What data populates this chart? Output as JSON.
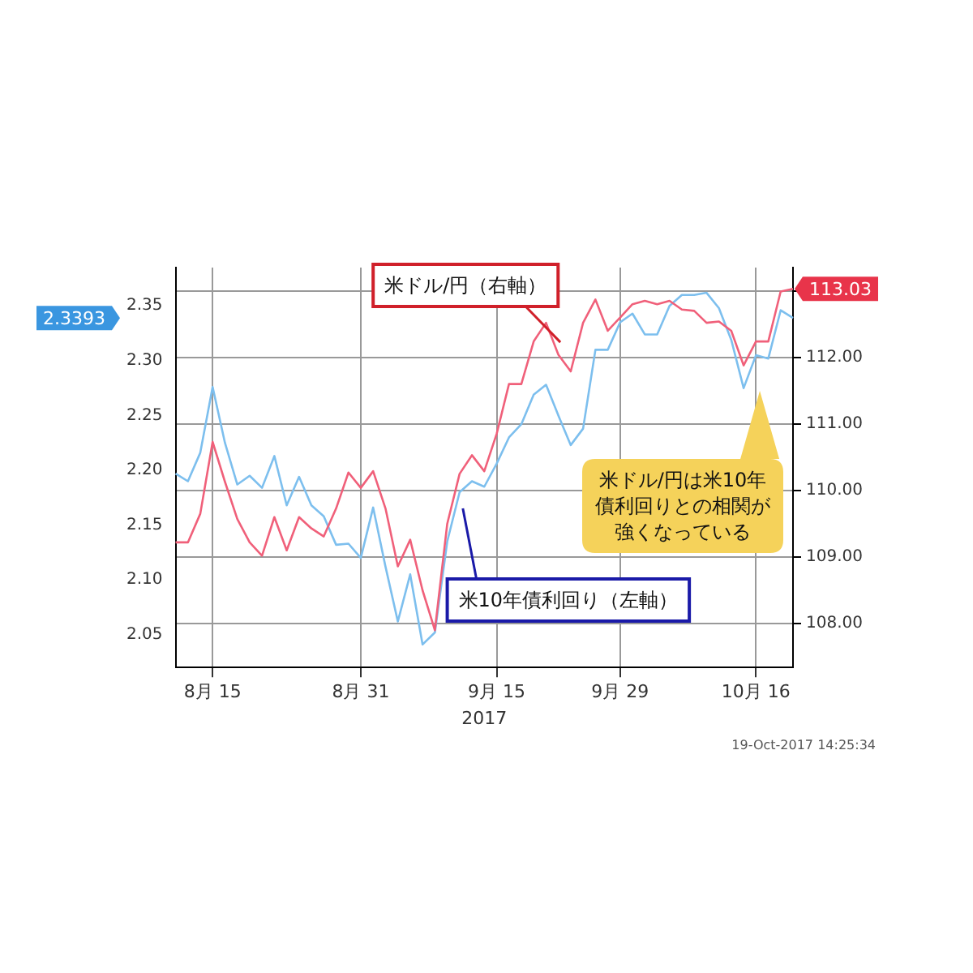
{
  "chart_data": {
    "type": "line",
    "categories": [
      null,
      null,
      null,
      "8月 15",
      null,
      null,
      null,
      null,
      null,
      null,
      null,
      null,
      null,
      null,
      null,
      "8月 31",
      null,
      null,
      null,
      null,
      null,
      null,
      null,
      null,
      null,
      null,
      "9月 15",
      null,
      null,
      null,
      null,
      null,
      null,
      null,
      null,
      null,
      "9月 29",
      null,
      null,
      null,
      null,
      null,
      null,
      null,
      null,
      null,
      null,
      "10月 16",
      null,
      null,
      null
    ],
    "xlabel": "2017",
    "series": [
      {
        "name": "米ドル/円（右軸）",
        "color": "#f0607a",
        "axis": "y2",
        "values": [
          109.22,
          109.22,
          109.65,
          110.73,
          110.13,
          109.57,
          109.22,
          109.02,
          109.6,
          109.1,
          109.6,
          109.43,
          109.31,
          109.73,
          110.27,
          110.04,
          110.29,
          109.73,
          108.86,
          109.26,
          108.5,
          107.9,
          109.5,
          110.25,
          110.53,
          110.29,
          110.85,
          111.6,
          111.6,
          112.24,
          112.52,
          112.04,
          111.79,
          112.52,
          112.87,
          112.4,
          112.6,
          112.8,
          112.85,
          112.8,
          112.85,
          112.72,
          112.7,
          112.52,
          112.54,
          112.4,
          111.88,
          112.24,
          112.24,
          112.99,
          113.03
        ],
        "value_labels": [
          null,
          null,
          null,
          null,
          null,
          null,
          null,
          null,
          null,
          null,
          null,
          null,
          null,
          null,
          null,
          null,
          null,
          null,
          null,
          null,
          null,
          null,
          null,
          null,
          null,
          null,
          null,
          null,
          null,
          null,
          null,
          null,
          null,
          null,
          null,
          null,
          null,
          null,
          null,
          null,
          null,
          null,
          null,
          null,
          null,
          null,
          null,
          null,
          null,
          null,
          "113.03"
        ]
      },
      {
        "name": "米10年債利回り（左軸）",
        "color": "#7dbfee",
        "axis": "y",
        "values": [
          2.197,
          2.19,
          2.216,
          2.276,
          2.225,
          2.187,
          2.195,
          2.184,
          2.213,
          2.168,
          2.194,
          2.168,
          2.158,
          2.132,
          2.133,
          2.12,
          2.166,
          2.112,
          2.062,
          2.105,
          2.041,
          2.052,
          2.135,
          2.18,
          2.19,
          2.185,
          2.206,
          2.23,
          2.242,
          2.269,
          2.278,
          2.25,
          2.223,
          2.238,
          2.31,
          2.31,
          2.335,
          2.343,
          2.324,
          2.324,
          2.35,
          2.36,
          2.36,
          2.362,
          2.348,
          2.319,
          2.275,
          2.305,
          2.302,
          2.346,
          2.339
        ]
      }
    ],
    "ylim": [
      2.02,
      2.385
    ],
    "yticks": [
      {
        "value": 2.05,
        "label": "2.05"
      },
      {
        "value": 2.1,
        "label": "2.10"
      },
      {
        "value": 2.15,
        "label": "2.15"
      },
      {
        "value": 2.2,
        "label": "2.20"
      },
      {
        "value": 2.25,
        "label": "2.25"
      },
      {
        "value": 2.3,
        "label": "2.30"
      },
      {
        "value": 2.35,
        "label": "2.35"
      }
    ],
    "y2lim": [
      107.34,
      113.35
    ],
    "y2ticks": [
      {
        "value": 108,
        "label": "108.00"
      },
      {
        "value": 109,
        "label": "109.00"
      },
      {
        "value": 110,
        "label": "110.00"
      },
      {
        "value": 111,
        "label": "111.00"
      },
      {
        "value": 112,
        "label": "112.00"
      },
      {
        "value": 113,
        "label": null
      }
    ],
    "grid": true,
    "legend": false,
    "marker": "none",
    "line_style": "solid",
    "annotations": [
      "米ドル/円は米10年債利回りとの相関が強くなっている",
      "19-Oct-2017 14:25:34",
      "2.3393"
    ]
  }
}
